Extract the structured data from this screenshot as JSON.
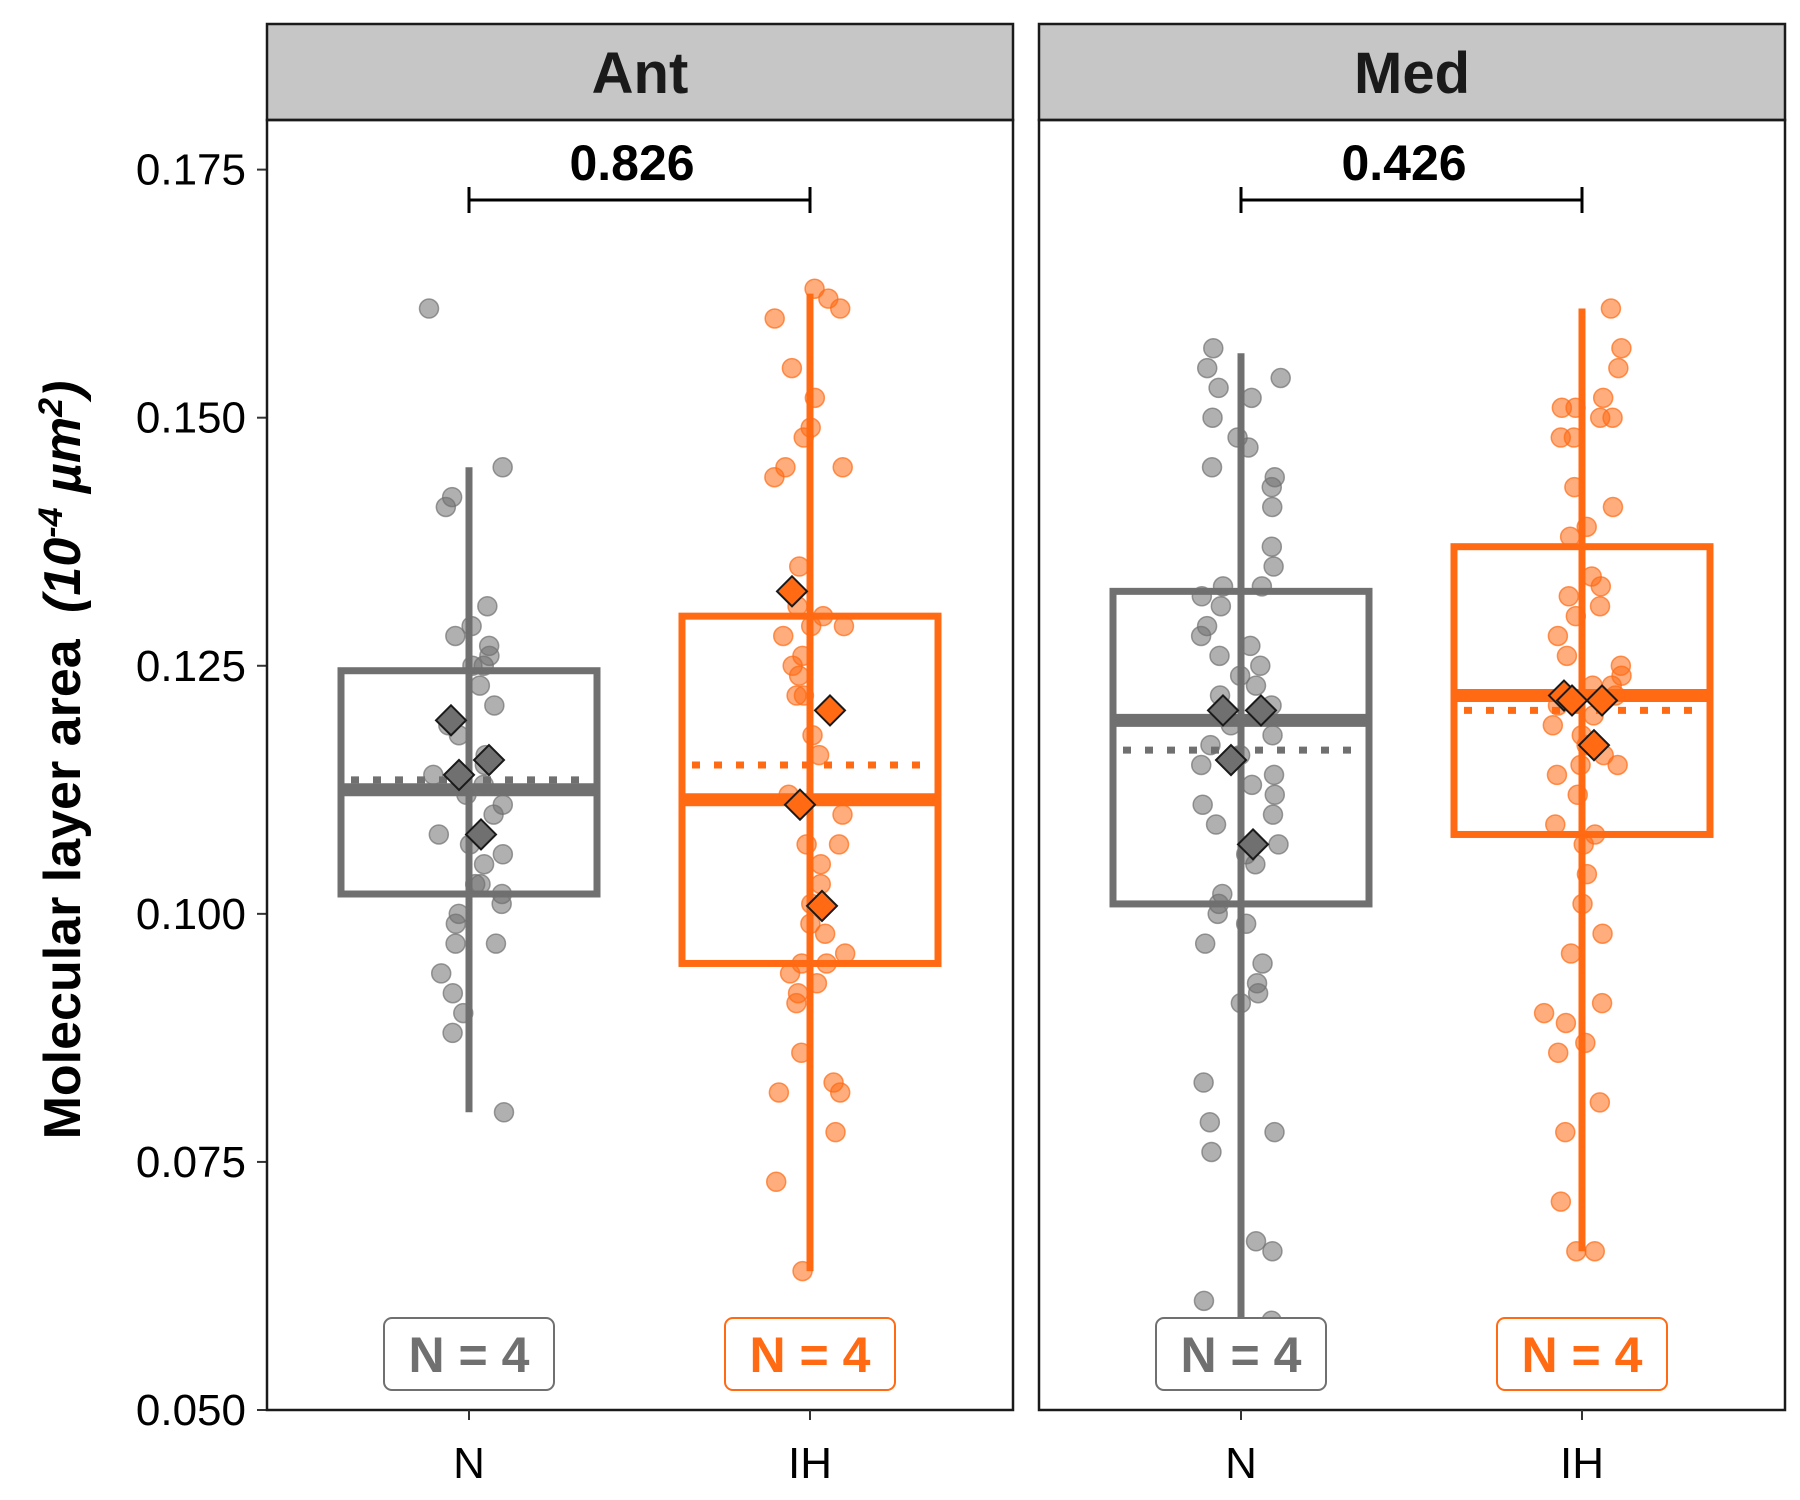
{
  "chart_data": {
    "type": "box",
    "ylabel_main": "Molecular layer area",
    "ylabel_unit_open": "(10",
    "ylabel_unit_exp1": "-4",
    "ylabel_unit_mid": " µm",
    "ylabel_unit_exp2": "2",
    "ylabel_unit_close": ")",
    "ylim": [
      0.05,
      0.18
    ],
    "yticks": [
      "0.050",
      "0.075",
      "0.100",
      "0.125",
      "0.150",
      "0.175"
    ],
    "ytick_values": [
      0.05,
      0.075,
      0.1,
      0.125,
      0.15,
      0.175
    ],
    "groups": [
      "N",
      "IH"
    ],
    "colors": {
      "N": "#707070",
      "IH": "#FF6A13"
    },
    "panels": [
      {
        "name": "Ant",
        "pvalue": "0.826",
        "boxes": [
          {
            "group": "N",
            "whisker_low": 0.08,
            "q1": 0.102,
            "median": 0.1125,
            "q3": 0.1245,
            "whisker_high": 0.145,
            "mean": 0.1135,
            "n_label": "N = 4",
            "animal_means": [
              0.1195,
              0.1155,
              0.114,
              0.108
            ],
            "points": [
              0.161,
              0.145,
              0.142,
              0.141,
              0.131,
              0.129,
              0.128,
              0.127,
              0.126,
              0.125,
              0.125,
              0.123,
              0.121,
              0.119,
              0.118,
              0.116,
              0.115,
              0.114,
              0.113,
              0.112,
              0.111,
              0.11,
              0.108,
              0.107,
              0.106,
              0.105,
              0.103,
              0.103,
              0.102,
              0.101,
              0.1,
              0.099,
              0.097,
              0.097,
              0.094,
              0.092,
              0.09,
              0.088,
              0.08
            ]
          },
          {
            "group": "IH",
            "whisker_low": 0.064,
            "q1": 0.095,
            "median": 0.1115,
            "q3": 0.13,
            "whisker_high": 0.1625,
            "mean": 0.115,
            "n_label": "N = 4",
            "animal_means": [
              0.1325,
              0.1205,
              0.111,
              0.1008
            ],
            "points": [
              0.163,
              0.162,
              0.161,
              0.16,
              0.155,
              0.152,
              0.149,
              0.148,
              0.145,
              0.145,
              0.144,
              0.135,
              0.131,
              0.13,
              0.129,
              0.129,
              0.128,
              0.126,
              0.125,
              0.124,
              0.122,
              0.122,
              0.118,
              0.116,
              0.112,
              0.11,
              0.107,
              0.107,
              0.105,
              0.103,
              0.101,
              0.099,
              0.098,
              0.096,
              0.095,
              0.095,
              0.094,
              0.093,
              0.092,
              0.091,
              0.086,
              0.083,
              0.082,
              0.082,
              0.078,
              0.073,
              0.064
            ]
          }
        ]
      },
      {
        "name": "Med",
        "pvalue": "0.426",
        "boxes": [
          {
            "group": "N",
            "whisker_low": 0.059,
            "q1": 0.101,
            "median": 0.1195,
            "q3": 0.1325,
            "whisker_high": 0.1565,
            "mean": 0.1165,
            "n_label": "N = 4",
            "animal_means": [
              0.1205,
              0.1205,
              0.1155,
              0.107
            ],
            "points": [
              0.157,
              0.155,
              0.154,
              0.153,
              0.152,
              0.15,
              0.148,
              0.147,
              0.145,
              0.144,
              0.143,
              0.141,
              0.137,
              0.135,
              0.133,
              0.133,
              0.132,
              0.131,
              0.129,
              0.128,
              0.127,
              0.126,
              0.125,
              0.124,
              0.123,
              0.122,
              0.121,
              0.12,
              0.119,
              0.118,
              0.117,
              0.116,
              0.115,
              0.114,
              0.113,
              0.112,
              0.111,
              0.11,
              0.109,
              0.107,
              0.106,
              0.105,
              0.102,
              0.101,
              0.1,
              0.099,
              0.097,
              0.095,
              0.093,
              0.092,
              0.091,
              0.083,
              0.079,
              0.078,
              0.076,
              0.067,
              0.066,
              0.061,
              0.059
            ]
          },
          {
            "group": "IH",
            "whisker_low": 0.066,
            "q1": 0.108,
            "median": 0.122,
            "q3": 0.137,
            "whisker_high": 0.161,
            "mean": 0.1205,
            "n_label": "N = 4",
            "animal_means": [
              0.122,
              0.1215,
              0.1215,
              0.117
            ],
            "points": [
              0.161,
              0.157,
              0.155,
              0.152,
              0.151,
              0.151,
              0.15,
              0.15,
              0.148,
              0.148,
              0.143,
              0.141,
              0.139,
              0.138,
              0.134,
              0.133,
              0.132,
              0.131,
              0.13,
              0.128,
              0.126,
              0.125,
              0.124,
              0.123,
              0.123,
              0.122,
              0.121,
              0.12,
              0.119,
              0.118,
              0.117,
              0.116,
              0.115,
              0.115,
              0.114,
              0.112,
              0.109,
              0.108,
              0.107,
              0.104,
              0.101,
              0.098,
              0.096,
              0.091,
              0.09,
              0.089,
              0.087,
              0.086,
              0.081,
              0.078,
              0.071,
              0.066,
              0.066
            ]
          }
        ]
      }
    ]
  }
}
